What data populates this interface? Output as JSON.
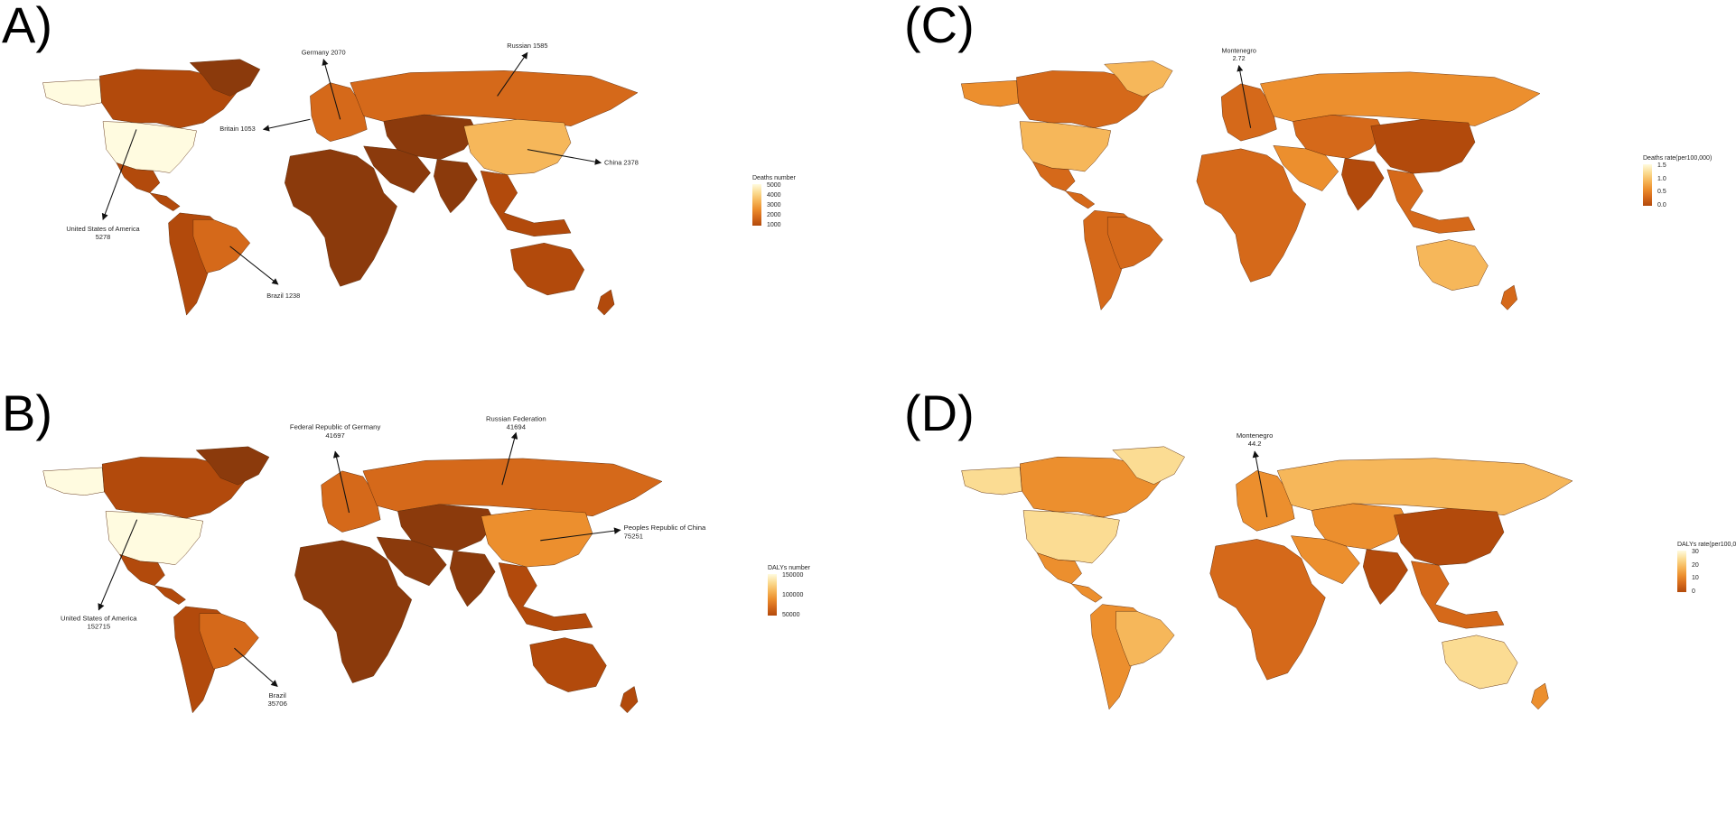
{
  "colors": {
    "darkest": "#8b3a0c",
    "dark": "#b24a0c",
    "mid": "#d5691a",
    "orange": "#ec8f2e",
    "light": "#f6b75a",
    "pale": "#fbdc93",
    "palest": "#fffbe0"
  },
  "panels": [
    {
      "id": "A",
      "letter": "A)",
      "annotations": [
        {
          "name": "germany",
          "lines": [
            "Germany  2070"
          ]
        },
        {
          "name": "russian",
          "lines": [
            "Russian  1585"
          ]
        },
        {
          "name": "britain",
          "lines": [
            "Britain 1053"
          ]
        },
        {
          "name": "china",
          "lines": [
            "China   2378"
          ]
        },
        {
          "name": "usa",
          "lines": [
            "United States of America",
            "5278"
          ]
        },
        {
          "name": "brazil",
          "lines": [
            "Brazil  1238"
          ]
        }
      ],
      "legend": {
        "title": "Deaths number",
        "ticks": [
          "5000",
          "4000",
          "3000",
          "2000",
          "1000"
        ]
      },
      "fills": {
        "na": "palest",
        "canada": "dark",
        "greenland": "darkest",
        "usa": "palest",
        "mexico": "dark",
        "central": "dark",
        "south": "dark",
        "brazil": "mid",
        "europe": "mid",
        "russia": "mid",
        "china": "light",
        "asia": "darkest",
        "africa": "darkest",
        "mideast": "darkest",
        "india": "darkest",
        "seasia": "dark",
        "australia": "dark",
        "nz": "dark"
      }
    },
    {
      "id": "B",
      "letter": "B)",
      "annotations": [
        {
          "name": "germany",
          "lines": [
            "Federal Republic of Germany",
            "41697"
          ]
        },
        {
          "name": "russian",
          "lines": [
            "Russian Federation",
            "41694"
          ]
        },
        {
          "name": "china",
          "lines": [
            "Peoples Republic of China",
            "75251"
          ]
        },
        {
          "name": "usa",
          "lines": [
            "United States of America",
            "152715"
          ]
        },
        {
          "name": "brazil",
          "lines": [
            "Brazil",
            "35706"
          ]
        }
      ],
      "legend": {
        "title": "DALYs number",
        "ticks": [
          "150000",
          "100000",
          "50000"
        ]
      },
      "fills": {
        "na": "palest",
        "canada": "dark",
        "greenland": "darkest",
        "usa": "palest",
        "mexico": "dark",
        "central": "dark",
        "south": "dark",
        "brazil": "mid",
        "europe": "mid",
        "russia": "mid",
        "china": "orange",
        "asia": "darkest",
        "africa": "darkest",
        "mideast": "darkest",
        "india": "darkest",
        "seasia": "dark",
        "australia": "dark",
        "nz": "dark"
      }
    },
    {
      "id": "C",
      "letter": "(C)",
      "annotations": [
        {
          "name": "montenegro",
          "lines": [
            "Montenegro",
            "2.72"
          ]
        }
      ],
      "legend": {
        "title": "Deaths rate(per100,000)",
        "ticks": [
          "1.5",
          "1.0",
          "0.5",
          "0.0"
        ]
      },
      "fills": {
        "na": "orange",
        "canada": "mid",
        "greenland": "light",
        "usa": "light",
        "mexico": "mid",
        "central": "mid",
        "south": "mid",
        "brazil": "mid",
        "europe": "mid",
        "russia": "orange",
        "china": "dark",
        "asia": "mid",
        "africa": "mid",
        "mideast": "orange",
        "india": "dark",
        "seasia": "mid",
        "australia": "light",
        "nz": "mid"
      }
    },
    {
      "id": "D",
      "letter": "(D)",
      "annotations": [
        {
          "name": "montenegro",
          "lines": [
            "Montenegro",
            "44.2"
          ]
        }
      ],
      "legend": {
        "title": "DALYs rate(per100,0",
        "ticks": [
          "30",
          "20",
          "10",
          "0"
        ]
      },
      "fills": {
        "na": "pale",
        "canada": "orange",
        "greenland": "pale",
        "usa": "pale",
        "mexico": "orange",
        "central": "orange",
        "south": "orange",
        "brazil": "light",
        "europe": "orange",
        "russia": "light",
        "china": "dark",
        "asia": "orange",
        "africa": "mid",
        "mideast": "orange",
        "india": "dark",
        "seasia": "mid",
        "australia": "pale",
        "nz": "orange"
      }
    }
  ]
}
